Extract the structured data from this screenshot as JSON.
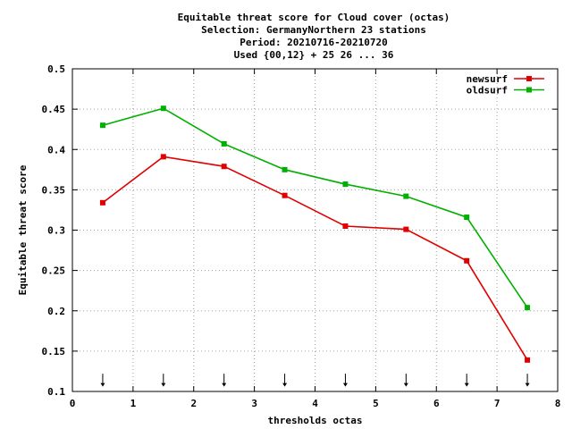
{
  "chart_data": {
    "type": "line",
    "title_lines": [
      "Equitable threat score  for Cloud cover (octas)",
      "Selection: GermanyNorthern     23 stations",
      "Period: 20210716-20210720",
      "Used {00,12} + 25 26 ... 36"
    ],
    "xlabel": "thresholds octas",
    "ylabel": "Equitable threat score",
    "xlim": [
      0,
      8
    ],
    "ylim": [
      0.1,
      0.5
    ],
    "x_ticks": [
      0,
      1,
      2,
      3,
      4,
      5,
      6,
      7,
      8
    ],
    "x_tick_labels": [
      "0",
      "1",
      "2",
      "3",
      "4",
      "5",
      "6",
      "7",
      "8"
    ],
    "y_ticks": [
      0.1,
      0.15,
      0.2,
      0.25,
      0.3,
      0.35,
      0.4,
      0.45,
      0.5
    ],
    "y_tick_labels": [
      "0.1",
      "0.15",
      "0.2",
      "0.25",
      "0.3",
      "0.35",
      "0.4",
      "0.45",
      "0.5"
    ],
    "grid": true,
    "legend_position": "top-right",
    "x": [
      0.5,
      1.5,
      2.5,
      3.5,
      4.5,
      5.5,
      6.5,
      7.5
    ],
    "series": [
      {
        "name": "newsurf",
        "color": "#e00000",
        "values": [
          0.334,
          0.391,
          0.379,
          0.343,
          0.305,
          0.301,
          0.262,
          0.139
        ]
      },
      {
        "name": "oldsurf",
        "color": "#00b000",
        "values": [
          0.43,
          0.451,
          0.407,
          0.375,
          0.357,
          0.342,
          0.316,
          0.204
        ]
      }
    ],
    "arrow_markers": {
      "x": [
        0.5,
        1.5,
        2.5,
        3.5,
        4.5,
        5.5,
        6.5,
        7.5
      ],
      "y_top": 0.122,
      "y_bottom": 0.106
    }
  }
}
